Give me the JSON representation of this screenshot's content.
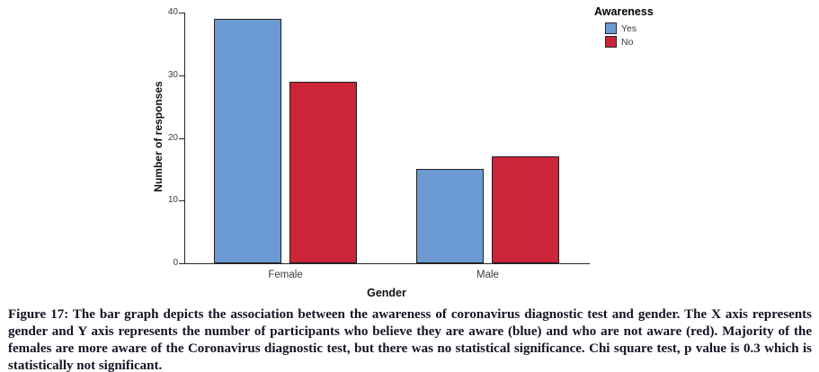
{
  "chart_data": {
    "type": "bar",
    "categories": [
      "Female",
      "Male"
    ],
    "series": [
      {
        "name": "Yes",
        "color": "#6b9bd2",
        "values": [
          39,
          15
        ]
      },
      {
        "name": "No",
        "color": "#cc2439",
        "values": [
          29,
          17
        ]
      }
    ],
    "title": "",
    "xlabel": "Gender",
    "ylabel": "Number of responses",
    "ylim": [
      0,
      40
    ],
    "yticks": [
      0,
      10,
      20,
      30,
      40
    ],
    "legend_title": "Awareness",
    "legend_position": "top-right",
    "grid": false
  },
  "caption": {
    "label": "Figure 17:",
    "text": "The bar graph depicts the association between the awareness of coronavirus diagnostic test and gender. The X axis represents gender and Y axis represents the number of participants who believe they are aware (blue) and who are not aware (red). Majority of the females are more aware of the Coronavirus diagnostic test, but there was no statistical significance. Chi square test, p value is 0.3 which is statistically not significant."
  }
}
